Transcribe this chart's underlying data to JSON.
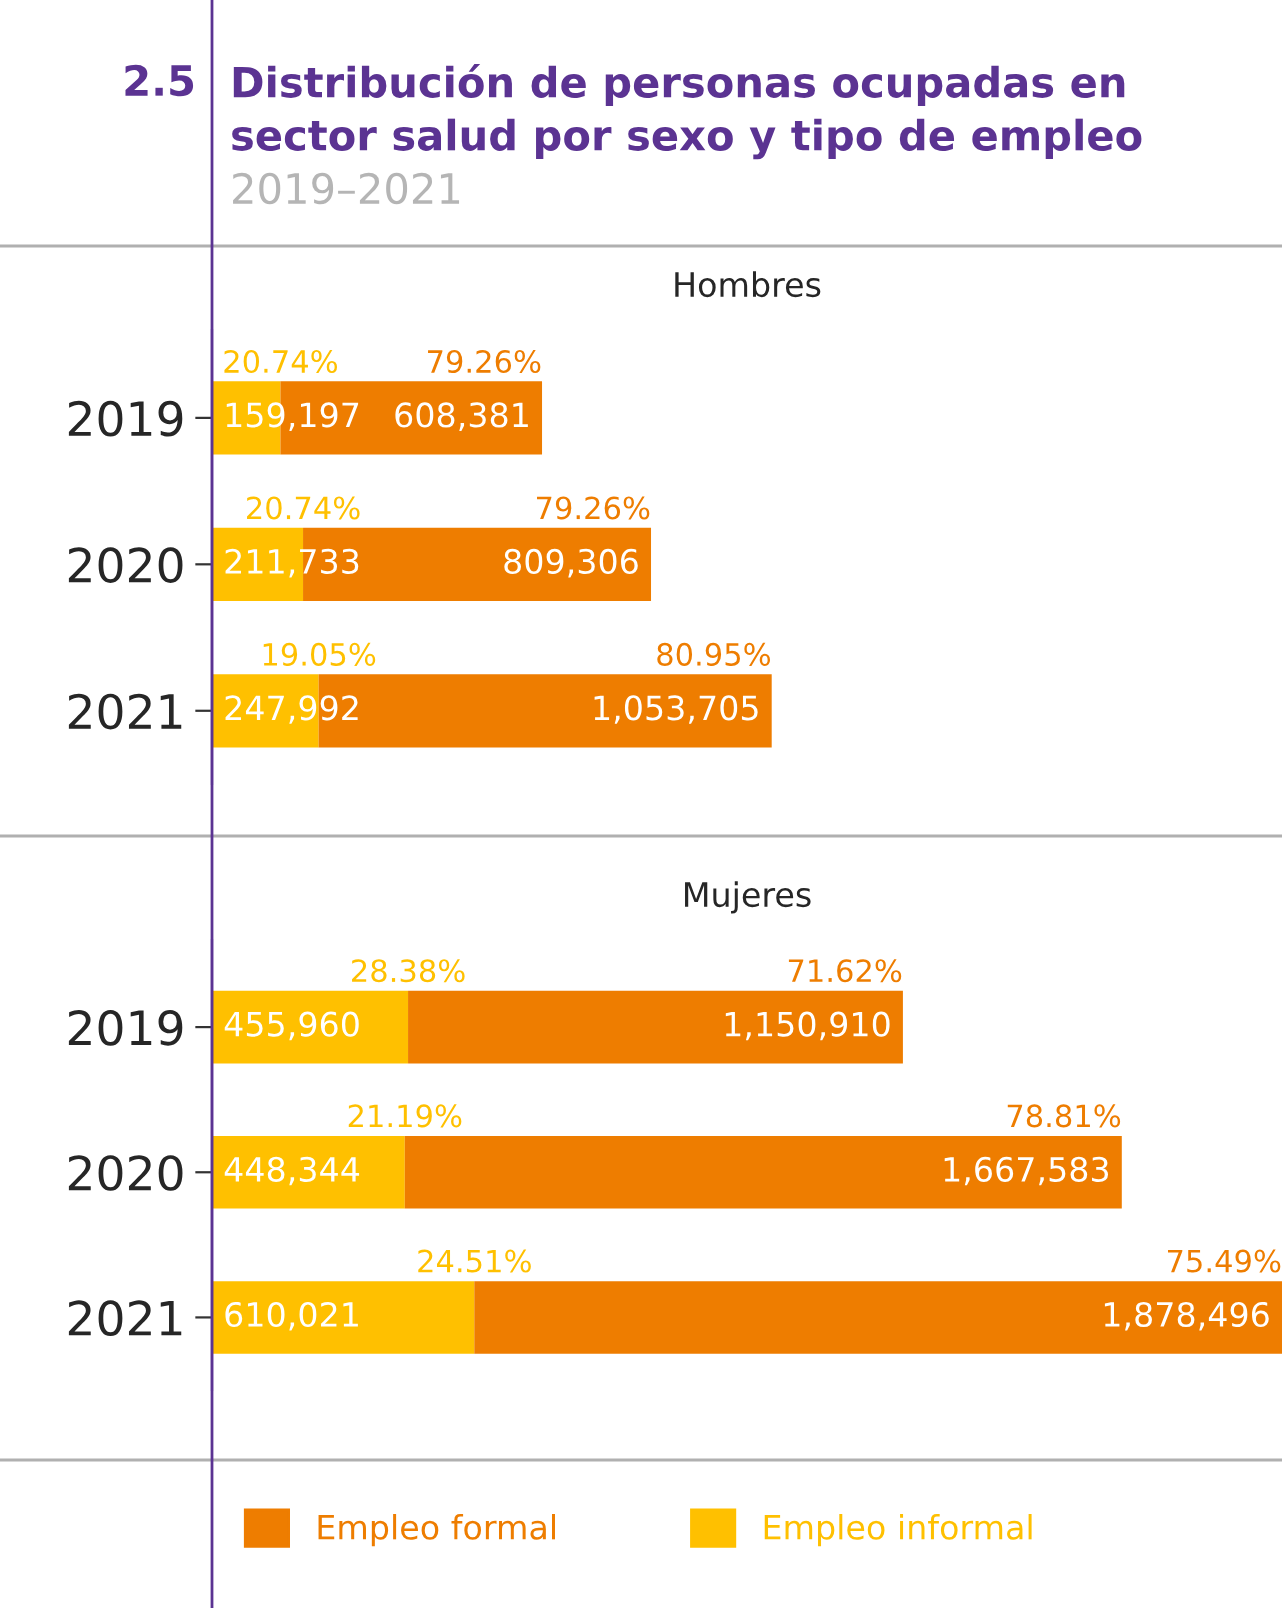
{
  "chart_data": [
    {
      "type": "other",
      "title": "Distribución de personas ocupadas en sector salud por sexo y tipo de empleo",
      "subtitle": "2019–2021",
      "annotations": [
        "2.5"
      ]
    },
    {
      "type": "bar",
      "title": "Hombres",
      "orientation": "horizontal",
      "stacked": true,
      "categories": [
        "2019",
        "2020",
        "2021"
      ],
      "tick_labels": "y",
      "series": [
        {
          "color": "#ffc000",
          "values": [
            159197,
            211733,
            247992
          ],
          "value_labels": [
            "159,197",
            "211,733",
            "247,992"
          ]
        },
        {
          "color": "#ee7d00",
          "values": [
            608381,
            809306,
            1053705
          ],
          "value_labels": [
            "608,381",
            "809,306",
            "1,053,705"
          ]
        }
      ],
      "annotations": [
        {
          "text": "20.74%",
          "x": 159197,
          "y": "2019"
        },
        {
          "text": "79.26%",
          "x": 767578,
          "y": "2019"
        },
        {
          "text": "20.74%",
          "x": 211733,
          "y": "2020"
        },
        {
          "text": "79.26%",
          "x": 1021039,
          "y": "2020"
        },
        {
          "text": "19.05%",
          "x": 247992,
          "y": "2021"
        },
        {
          "text": "80.95%",
          "x": 1301697,
          "y": "2021"
        }
      ]
    },
    {
      "type": "bar",
      "title": "Mujeres",
      "orientation": "horizontal",
      "stacked": true,
      "categories": [
        "2019",
        "2020",
        "2021"
      ],
      "tick_labels": "y",
      "legend": "bottom",
      "series": [
        {
          "name": "Empleo informal",
          "color": "#ffc000",
          "values": [
            455960,
            448344,
            610021
          ],
          "value_labels": [
            "455,960",
            "448,344",
            "610,021"
          ]
        },
        {
          "name": "Empleo formal",
          "color": "#ee7d00",
          "values": [
            1150910,
            1667583,
            1878496
          ],
          "value_labels": [
            "1,150,910",
            "1,667,583",
            "1,878,496"
          ]
        }
      ],
      "annotations": [
        {
          "text": "28.38%",
          "x": 455960,
          "y": "2019"
        },
        {
          "text": "71.62%",
          "x": 1606870,
          "y": "2019"
        },
        {
          "text": "21.19%",
          "x": 448344,
          "y": "2020"
        },
        {
          "text": "78.81%",
          "x": 2115927,
          "y": "2020"
        },
        {
          "text": "24.51%",
          "x": 610021,
          "y": "2021"
        },
        {
          "text": "75.49%",
          "x": 2488517,
          "y": "2021"
        }
      ]
    }
  ]
}
